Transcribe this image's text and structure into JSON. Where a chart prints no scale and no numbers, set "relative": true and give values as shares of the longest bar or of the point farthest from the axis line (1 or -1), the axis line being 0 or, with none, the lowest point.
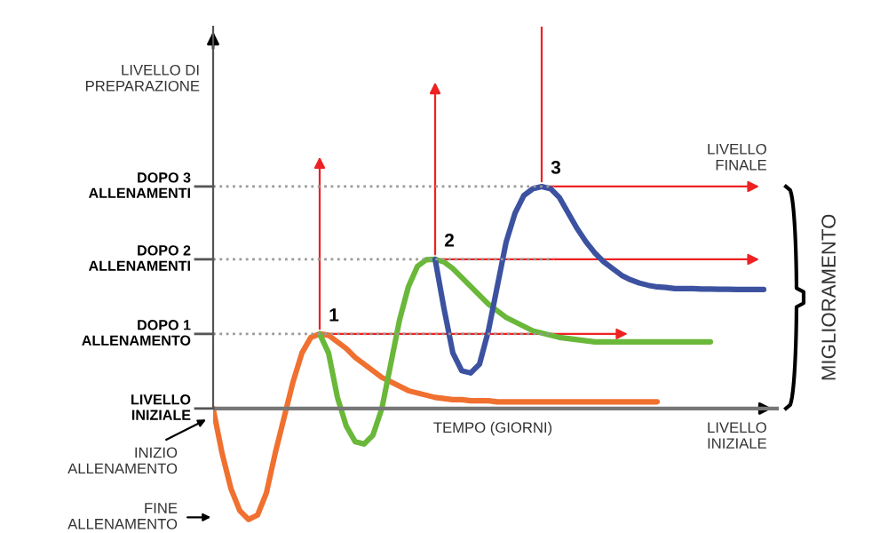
{
  "chart_data": {
    "type": "line",
    "relative": true,
    "xlabel": "TEMPO (GIORNI)",
    "categories": [
      null,
      null,
      null,
      null,
      null,
      null,
      null,
      null,
      null,
      null,
      null,
      null,
      null,
      null,
      null,
      null,
      null,
      null,
      null,
      null,
      null,
      null,
      null,
      null,
      null,
      null,
      null,
      null,
      null,
      null,
      null,
      null,
      null,
      null,
      null,
      null,
      null,
      null,
      null,
      null,
      null,
      null,
      null,
      null,
      null,
      null,
      null,
      null,
      null,
      null,
      null,
      null,
      null,
      null,
      null,
      null,
      null,
      null,
      null,
      null,
      null,
      null,
      null
    ],
    "series": [
      {
        "color": "#f07030",
        "values": [
          0,
          -0.2,
          -0.36,
          -0.46,
          -0.5,
          -0.48,
          -0.38,
          -0.2,
          -0.04,
          0.12,
          0.25,
          0.32,
          0.336,
          0.33,
          0.3,
          0.27,
          0.23,
          0.2,
          0.17,
          0.14,
          0.12,
          0.1,
          0.08,
          0.07,
          0.06,
          0.05,
          0.045,
          0.04,
          0.04,
          0.035,
          0.035,
          0.035,
          0.03,
          0.03,
          0.03,
          0.03,
          0.03,
          0.03,
          0.03,
          0.03,
          0.03,
          0.03,
          0.03,
          0.03,
          0.03,
          0.03,
          0.03,
          0.03,
          0.03,
          0.03,
          0.03,
          null,
          null,
          null,
          null,
          null,
          null,
          null,
          null,
          null,
          null,
          null,
          null
        ]
      },
      {
        "color": "#6ab83a",
        "values": [
          null,
          null,
          null,
          null,
          null,
          null,
          null,
          null,
          null,
          null,
          null,
          null,
          0.336,
          0.25,
          0.05,
          -0.08,
          -0.15,
          -0.16,
          -0.12,
          0,
          0.2,
          0.4,
          0.55,
          0.64,
          0.67,
          0.672,
          0.66,
          0.63,
          0.59,
          0.55,
          0.51,
          0.47,
          0.44,
          0.41,
          0.39,
          0.37,
          0.35,
          0.34,
          0.33,
          0.32,
          0.315,
          0.31,
          0.305,
          0.3,
          0.3,
          0.3,
          0.3,
          0.3,
          0.3,
          0.3,
          0.3,
          0.3,
          0.3,
          0.3,
          0.3,
          0.3,
          0.3,
          null,
          null,
          null,
          null,
          null,
          null
        ]
      },
      {
        "color": "#3c52a0",
        "values": [
          null,
          null,
          null,
          null,
          null,
          null,
          null,
          null,
          null,
          null,
          null,
          null,
          null,
          null,
          null,
          null,
          null,
          null,
          null,
          null,
          null,
          null,
          null,
          null,
          null,
          0.672,
          0.45,
          0.25,
          0.17,
          0.16,
          0.2,
          0.35,
          0.55,
          0.75,
          0.88,
          0.96,
          0.99,
          1.0,
          0.99,
          0.95,
          0.88,
          0.81,
          0.75,
          0.7,
          0.66,
          0.63,
          0.6,
          0.58,
          0.565,
          0.555,
          0.548,
          0.545,
          0.54,
          0.54,
          0.54,
          0.538,
          0.538,
          0.537,
          0.537,
          0.536,
          0.536,
          0.536,
          0.536
        ]
      }
    ],
    "ref_lines": [
      {
        "axis": "y",
        "value": 0,
        "label": "LIVELLO\nINIZIALE",
        "color": "#777777",
        "line_style": "solid"
      },
      {
        "axis": "y",
        "value": 0.336,
        "label": "DOPO 1\nALLENAMENTO",
        "color": "#999999",
        "line_style": "dotted"
      },
      {
        "axis": "y",
        "value": 0.672,
        "label": "DOPO 2\nALLENAMENTI",
        "color": "#999999",
        "line_style": "dotted"
      },
      {
        "axis": "y",
        "value": 1.0,
        "label": "DOPO 3\nALLENAMENTI",
        "color": "#999999",
        "line_style": "dotted"
      }
    ],
    "annotations": [
      "1",
      "2",
      "3",
      "LIVELLO\nFINALE",
      "LIVELLO\nINIZIALE",
      "INIZIO\nALLENAMENTO",
      "FINE\nALLENAMENTO",
      "MIGLIORAMENTO",
      "LIVELLO DI\nPREPARAZIONE"
    ],
    "marker": "none",
    "line_style": "solid",
    "legend": false
  }
}
